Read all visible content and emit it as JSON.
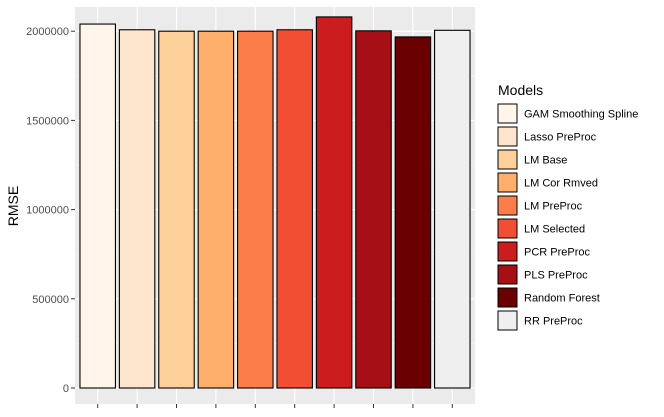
{
  "chart_data": {
    "type": "bar",
    "title": "",
    "xlabel": "",
    "ylabel": "RMSE",
    "categories": [
      "GAM Smoothing Spline",
      "Lasso PreProc",
      "LM Base",
      "LM Cor Rmved",
      "LM PreProc",
      "LM Selected",
      "PCR PreProc",
      "PLS PreProc",
      "Random Forest",
      "RR PreProc"
    ],
    "values": [
      2040000,
      2008000,
      2000000,
      2000000,
      2000000,
      2008000,
      2080000,
      2002000,
      1968000,
      2005000
    ],
    "colors": [
      "#FFF5EB",
      "#FEE6CE",
      "#FDD09A",
      "#FDAE6B",
      "#FC7D4A",
      "#F24E33",
      "#CB1D1D",
      "#A50F15",
      "#6B0000",
      "#EFEFEF"
    ],
    "ylim": [
      0,
      2130000
    ],
    "yticks": [
      0,
      500000,
      1000000,
      1500000,
      2000000
    ],
    "ytick_labels": [
      "0",
      "500000",
      "1000000",
      "1500000",
      "2000000"
    ],
    "grid": true,
    "legend": {
      "title": "Models",
      "position": "right",
      "entries": [
        "GAM Smoothing Spline",
        "Lasso PreProc",
        "LM Base",
        "LM Cor Rmved",
        "LM PreProc",
        "LM Selected",
        "PCR PreProc",
        "PLS PreProc",
        "Random Forest",
        "RR PreProc"
      ]
    }
  }
}
